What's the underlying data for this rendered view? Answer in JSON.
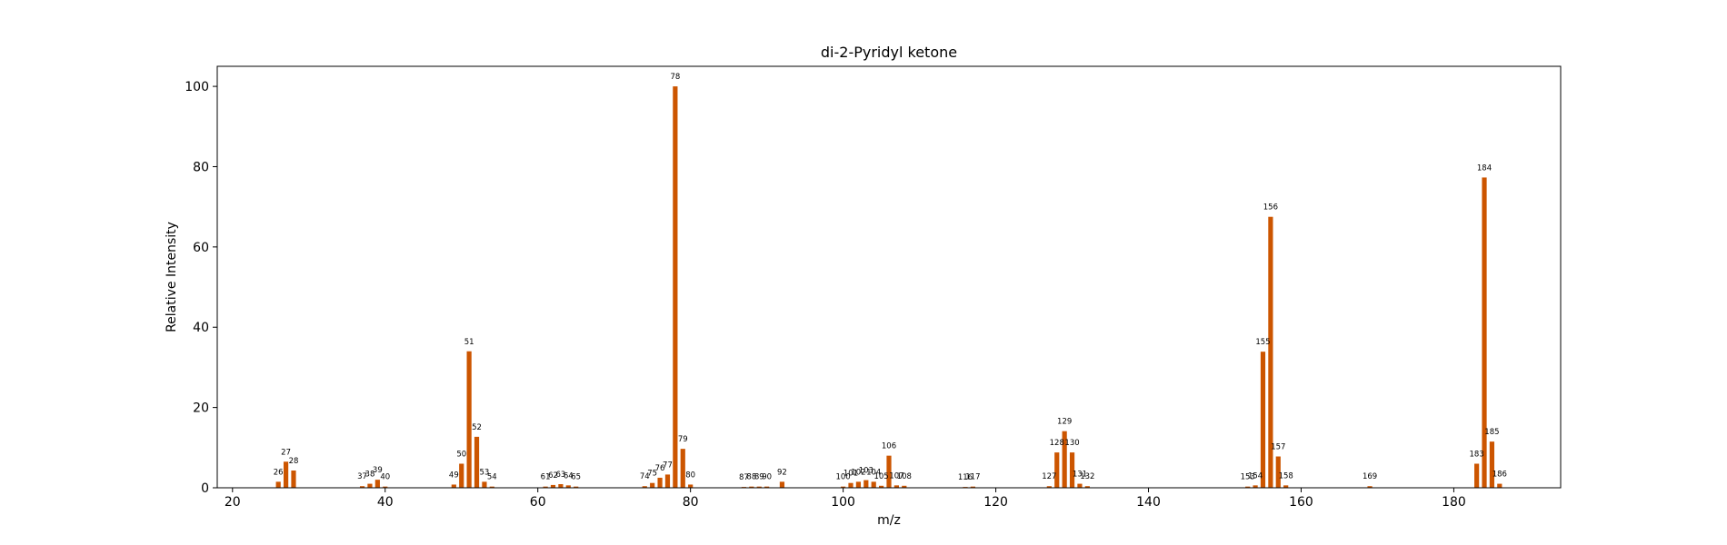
{
  "chart_data": {
    "type": "bar",
    "title": "di-2-Pyridyl ketone",
    "xlabel": "m/z",
    "ylabel": "Relative Intensity",
    "xlim": [
      18,
      194
    ],
    "ylim": [
      0,
      105
    ],
    "xticks": [
      20,
      40,
      60,
      80,
      100,
      120,
      140,
      160,
      180
    ],
    "yticks": [
      0,
      20,
      40,
      60,
      80,
      100
    ],
    "grid": false,
    "bar_color": "#cc5500",
    "series": [
      {
        "points": [
          {
            "x": 26,
            "y": 1.5
          },
          {
            "x": 27,
            "y": 6.5
          },
          {
            "x": 28,
            "y": 4.3
          },
          {
            "x": 37,
            "y": 0.4
          },
          {
            "x": 38,
            "y": 1.0
          },
          {
            "x": 39,
            "y": 2.0
          },
          {
            "x": 40,
            "y": 0.3
          },
          {
            "x": 49,
            "y": 0.8
          },
          {
            "x": 50,
            "y": 6.0
          },
          {
            "x": 51,
            "y": 34.0
          },
          {
            "x": 52,
            "y": 12.7
          },
          {
            "x": 53,
            "y": 1.5
          },
          {
            "x": 54,
            "y": 0.3
          },
          {
            "x": 61,
            "y": 0.3
          },
          {
            "x": 62,
            "y": 0.7
          },
          {
            "x": 63,
            "y": 0.9
          },
          {
            "x": 64,
            "y": 0.6
          },
          {
            "x": 65,
            "y": 0.3
          },
          {
            "x": 74,
            "y": 0.4
          },
          {
            "x": 75,
            "y": 1.2
          },
          {
            "x": 76,
            "y": 2.5
          },
          {
            "x": 77,
            "y": 3.3
          },
          {
            "x": 78,
            "y": 100.0
          },
          {
            "x": 79,
            "y": 9.7
          },
          {
            "x": 80,
            "y": 0.8
          },
          {
            "x": 87,
            "y": 0.2
          },
          {
            "x": 88,
            "y": 0.3
          },
          {
            "x": 89,
            "y": 0.3
          },
          {
            "x": 90,
            "y": 0.3
          },
          {
            "x": 92,
            "y": 1.5
          },
          {
            "x": 100,
            "y": 0.3
          },
          {
            "x": 101,
            "y": 1.2
          },
          {
            "x": 102,
            "y": 1.5
          },
          {
            "x": 103,
            "y": 1.9
          },
          {
            "x": 104,
            "y": 1.5
          },
          {
            "x": 105,
            "y": 0.5
          },
          {
            "x": 106,
            "y": 8.0
          },
          {
            "x": 107,
            "y": 0.6
          },
          {
            "x": 108,
            "y": 0.5
          },
          {
            "x": 116,
            "y": 0.2
          },
          {
            "x": 117,
            "y": 0.3
          },
          {
            "x": 127,
            "y": 0.4
          },
          {
            "x": 128,
            "y": 8.8
          },
          {
            "x": 129,
            "y": 14.1
          },
          {
            "x": 130,
            "y": 8.8
          },
          {
            "x": 131,
            "y": 1.0
          },
          {
            "x": 132,
            "y": 0.4
          },
          {
            "x": 153,
            "y": 0.3
          },
          {
            "x": 154,
            "y": 0.6
          },
          {
            "x": 155,
            "y": 33.9
          },
          {
            "x": 156,
            "y": 67.5
          },
          {
            "x": 157,
            "y": 7.8
          },
          {
            "x": 158,
            "y": 0.6
          },
          {
            "x": 169,
            "y": 0.4
          },
          {
            "x": 183,
            "y": 6.0
          },
          {
            "x": 184,
            "y": 77.3
          },
          {
            "x": 185,
            "y": 11.5
          },
          {
            "x": 186,
            "y": 1.0
          }
        ]
      }
    ]
  }
}
